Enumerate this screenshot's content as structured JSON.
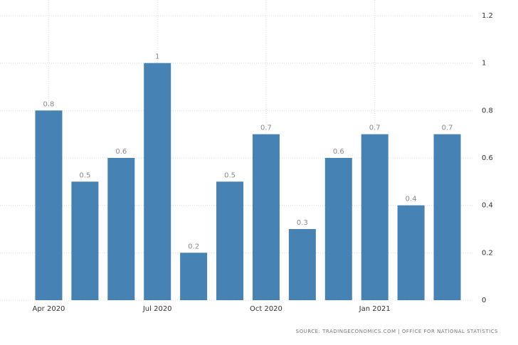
{
  "chart_data": {
    "type": "bar",
    "categories": [
      "Apr 2020",
      null,
      null,
      "Jul 2020",
      null,
      null,
      "Oct 2020",
      null,
      null,
      "Jan 2021",
      null,
      null
    ],
    "values": [
      0.8,
      0.5,
      0.6,
      1,
      0.2,
      0.5,
      0.7,
      0.3,
      0.6,
      0.7,
      0.4,
      0.7
    ],
    "color": "#4682b4",
    "ylim": [
      0,
      1.2
    ],
    "yticks": [
      0,
      0.2,
      0.4,
      0.6,
      0.8,
      1,
      1.2
    ],
    "grid": true,
    "y_axis_side": "right",
    "source": "SOURCE: TRADINGECONOMICS.COM | OFFICE FOR NATIONAL STATISTICS"
  }
}
